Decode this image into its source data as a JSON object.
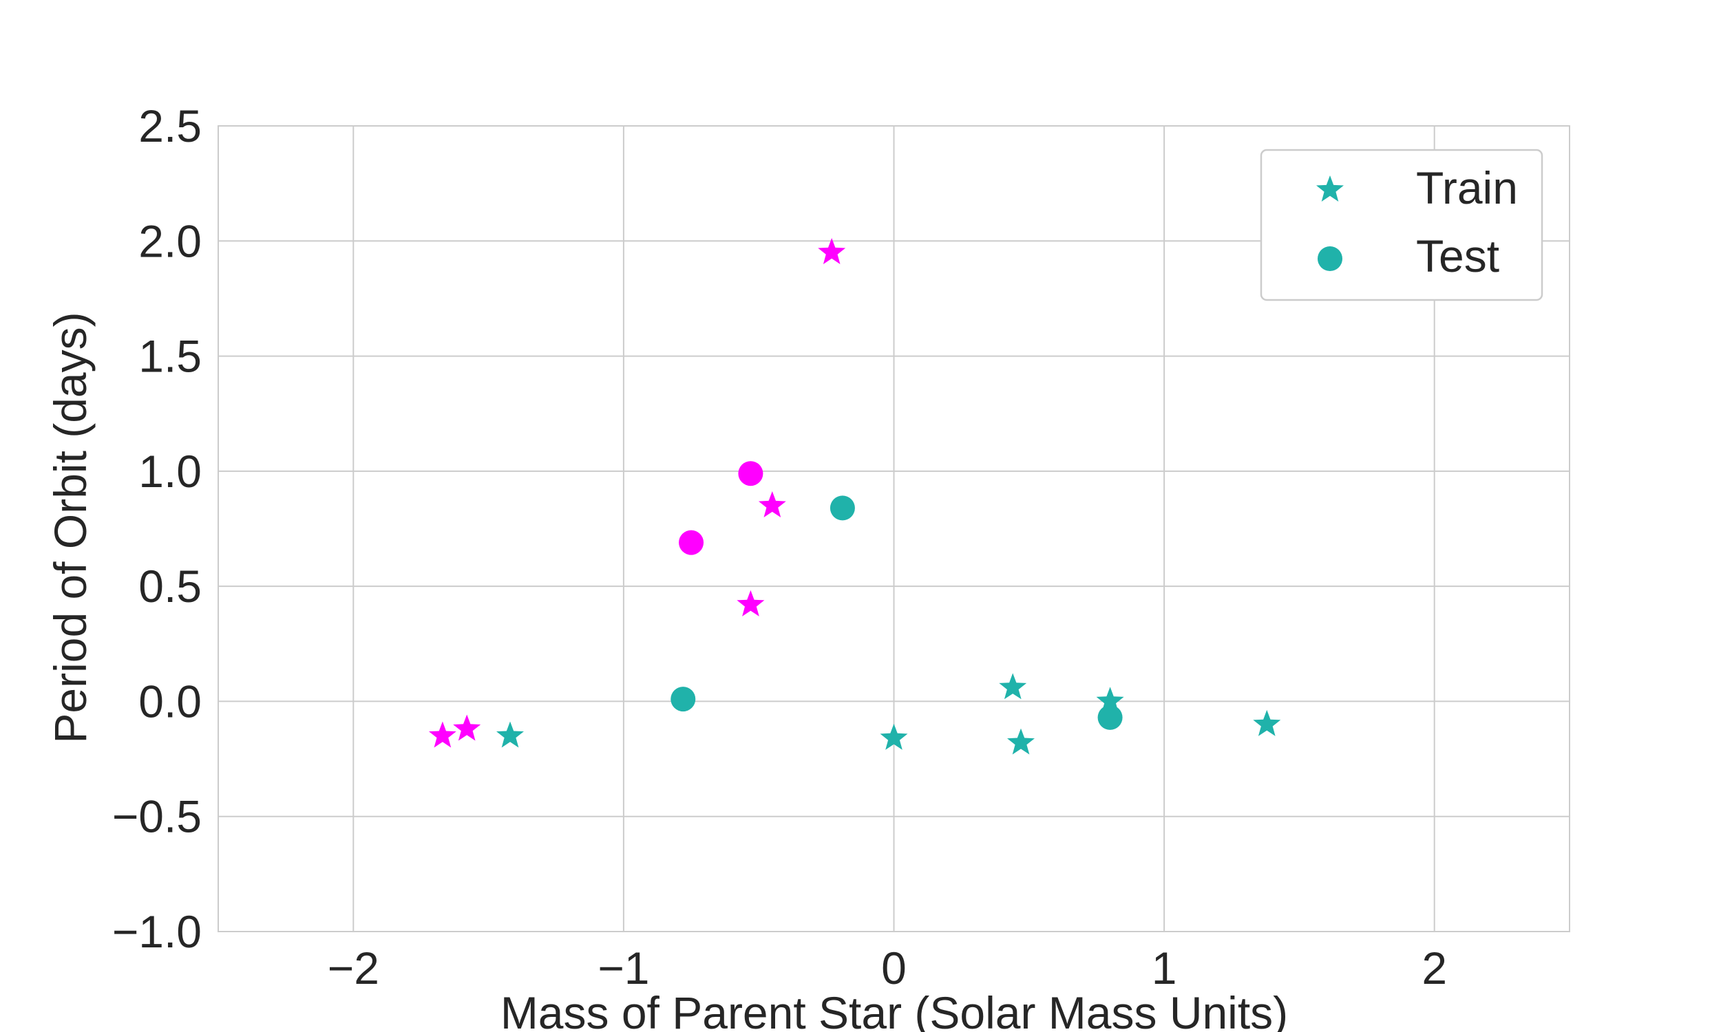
{
  "chart_data": {
    "type": "scatter",
    "title": "",
    "xlabel": "Mass of Parent Star (Solar Mass Units)",
    "ylabel": "Period of Orbit (days)",
    "xlim": [
      -2.5,
      2.5
    ],
    "ylim": [
      -1.0,
      2.5
    ],
    "x_ticks": [
      -2,
      -1,
      0,
      1,
      2
    ],
    "x_tick_labels": [
      "−2",
      "−1",
      "0",
      "1",
      "2"
    ],
    "y_ticks": [
      -1.0,
      -0.5,
      0.0,
      0.5,
      1.0,
      1.5,
      2.0,
      2.5
    ],
    "y_tick_labels": [
      "−1.0",
      "−0.5",
      "0.0",
      "0.5",
      "1.0",
      "1.5",
      "2.0",
      "2.5"
    ],
    "grid": true,
    "legend_position": "top-right",
    "legend": [
      {
        "label": "Train",
        "marker": "star",
        "color": "#20b2aa"
      },
      {
        "label": "Test",
        "marker": "circle",
        "color": "#20b2aa"
      }
    ],
    "colors": {
      "class_a": "#20b2aa",
      "class_b": "#ff00ff"
    },
    "series": [
      {
        "name": "Train",
        "marker": "star",
        "points": [
          {
            "x": -1.42,
            "y": -0.15,
            "color": "#20b2aa"
          },
          {
            "x": 0.0,
            "y": -0.16,
            "color": "#20b2aa"
          },
          {
            "x": 0.44,
            "y": 0.06,
            "color": "#20b2aa"
          },
          {
            "x": 0.47,
            "y": -0.18,
            "color": "#20b2aa"
          },
          {
            "x": 0.8,
            "y": 0.0,
            "color": "#20b2aa"
          },
          {
            "x": 1.38,
            "y": -0.1,
            "color": "#20b2aa"
          },
          {
            "x": -1.67,
            "y": -0.15,
            "color": "#ff00ff"
          },
          {
            "x": -1.58,
            "y": -0.12,
            "color": "#ff00ff"
          },
          {
            "x": -0.53,
            "y": 0.42,
            "color": "#ff00ff"
          },
          {
            "x": -0.45,
            "y": 0.85,
            "color": "#ff00ff"
          },
          {
            "x": -0.23,
            "y": 1.95,
            "color": "#ff00ff"
          }
        ]
      },
      {
        "name": "Test",
        "marker": "circle",
        "points": [
          {
            "x": -0.78,
            "y": 0.01,
            "color": "#20b2aa"
          },
          {
            "x": -0.19,
            "y": 0.84,
            "color": "#20b2aa"
          },
          {
            "x": 0.8,
            "y": -0.07,
            "color": "#20b2aa"
          },
          {
            "x": -0.75,
            "y": 0.69,
            "color": "#ff00ff"
          },
          {
            "x": -0.53,
            "y": 0.99,
            "color": "#ff00ff"
          }
        ]
      }
    ]
  }
}
